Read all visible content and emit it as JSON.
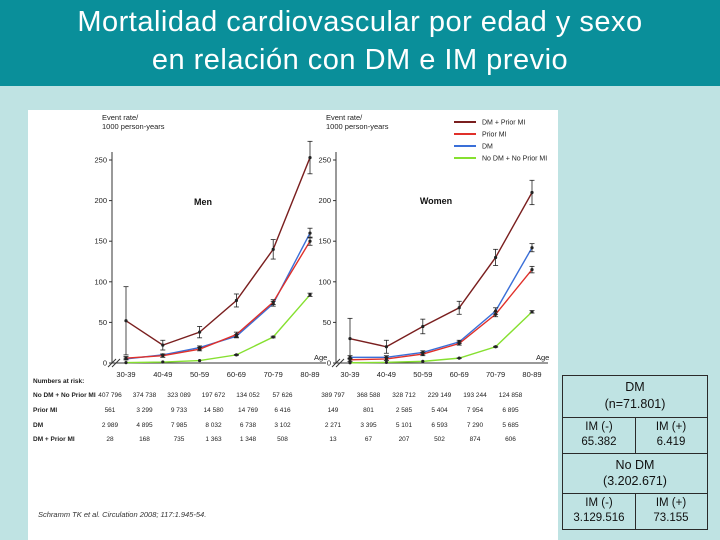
{
  "slide": {
    "title_line1": "Mortalidad cardiovascular por edad y sexo",
    "title_line2": "en relación con DM e IM previo"
  },
  "figure": {
    "citation": "Schramm TK et al. Circulation 2008; 117:1.945-54.",
    "y_axis_label_line1": "Event rate/",
    "y_axis_label_line2": "1000 person-years",
    "age_label": "Age",
    "numbers_at_risk_label": "Numbers at risk:",
    "risk_row_labels": [
      "No DM + No Prior MI",
      "Prior MI",
      "DM",
      "DM + Prior MI"
    ],
    "risk_men": [
      [
        "407 796",
        "374 738",
        "323 089",
        "197 672",
        "134 052",
        "57 626"
      ],
      [
        "561",
        "3 299",
        "9 733",
        "14 580",
        "14 769",
        "6 416"
      ],
      [
        "2 989",
        "4 895",
        "7 985",
        "8 032",
        "6 738",
        "3 102"
      ],
      [
        "28",
        "168",
        "735",
        "1 363",
        "1 348",
        "508"
      ]
    ],
    "risk_women": [
      [
        "389 797",
        "368 588",
        "328 712",
        "229 149",
        "193 244",
        "124 858"
      ],
      [
        "149",
        "801",
        "2 585",
        "5 404",
        "7 954",
        "6 895"
      ],
      [
        "2 271",
        "3 395",
        "5 101",
        "6 593",
        "7 290",
        "5 685"
      ],
      [
        "13",
        "67",
        "207",
        "502",
        "874",
        "606"
      ]
    ]
  },
  "chart_data": [
    {
      "type": "line",
      "title": "Men",
      "xlabel": "Age",
      "ylabel": "Event rate/ 1000 person-years",
      "categories": [
        "30-39",
        "40-49",
        "50-59",
        "60-69",
        "70-79",
        "80-89"
      ],
      "ylim": [
        0,
        250
      ],
      "yticks": [
        0,
        50,
        100,
        150,
        200,
        250
      ],
      "legend_position": "top-right",
      "series": [
        {
          "name": "DM + Prior MI",
          "color": "#7a1f1f",
          "values": [
            52,
            22,
            38,
            77,
            140,
            253
          ],
          "err": [
            42,
            6,
            7,
            8,
            12,
            20
          ]
        },
        {
          "name": "Prior MI",
          "color": "#e0302a",
          "values": [
            6,
            9,
            17,
            35,
            75,
            150
          ],
          "err": [
            2,
            2,
            2,
            3,
            3,
            5
          ]
        },
        {
          "name": "DM",
          "color": "#3a6fd8",
          "values": [
            5,
            10,
            19,
            33,
            73,
            160
          ],
          "err": [
            1,
            1,
            2,
            2,
            3,
            6
          ]
        },
        {
          "name": "No DM + No Prior MI",
          "color": "#86e030",
          "values": [
            0.5,
            1.2,
            3,
            10,
            32,
            84
          ],
          "err": [
            0,
            0,
            0,
            0.5,
            1,
            2
          ]
        }
      ]
    },
    {
      "type": "line",
      "title": "Women",
      "xlabel": "Age",
      "ylabel": "Event rate/ 1000 person-years",
      "categories": [
        "30-39",
        "40-49",
        "50-59",
        "60-69",
        "70-79",
        "80-89"
      ],
      "ylim": [
        0,
        250
      ],
      "yticks": [
        0,
        50,
        100,
        150,
        200,
        250
      ],
      "legend_position": "top-right",
      "series": [
        {
          "name": "DM + Prior MI",
          "color": "#7a1f1f",
          "values": [
            30,
            20,
            45,
            68,
            130,
            210
          ],
          "err": [
            25,
            8,
            9,
            8,
            10,
            15
          ]
        },
        {
          "name": "Prior MI",
          "color": "#e0302a",
          "values": [
            4,
            5,
            11,
            24,
            60,
            115
          ],
          "err": [
            2,
            2,
            2,
            2,
            3,
            4
          ]
        },
        {
          "name": "DM",
          "color": "#3a6fd8",
          "values": [
            7,
            7,
            13,
            26,
            64,
            142
          ],
          "err": [
            2,
            2,
            2,
            2,
            4,
            5
          ]
        },
        {
          "name": "No DM + No Prior MI",
          "color": "#86e030",
          "values": [
            0.3,
            0.8,
            2,
            6,
            20,
            63
          ],
          "err": [
            0,
            0,
            0,
            0.3,
            0.6,
            1.5
          ]
        }
      ]
    }
  ],
  "boxes": {
    "dm_title": "DM",
    "dm_n": "(n=71.801)",
    "dm_neg_label": "IM (-)",
    "dm_neg_value": "65.382",
    "dm_pos_label": "IM (+)",
    "dm_pos_value": "6.419",
    "nodm_title": "No DM",
    "nodm_n": "(3.202.671)",
    "nodm_neg_label": "IM (-)",
    "nodm_neg_value": "3.129.516",
    "nodm_pos_label": "IM (+)",
    "nodm_pos_value": "73.155"
  }
}
